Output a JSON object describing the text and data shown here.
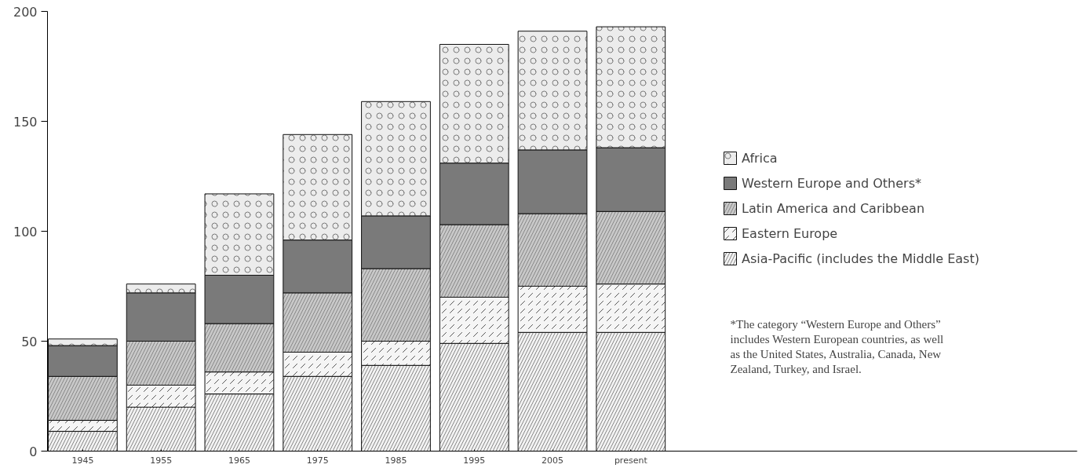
{
  "chart_data": {
    "type": "bar",
    "stacked": true,
    "categories": [
      "1945",
      "1955",
      "1965",
      "1975",
      "1985",
      "1995",
      "2005",
      "present"
    ],
    "series": [
      {
        "name": "Asia-Pacific (includes the Middle East)",
        "color": "#f2f2f2",
        "values": [
          9,
          20,
          26,
          34,
          39,
          49,
          54,
          54
        ]
      },
      {
        "name": "Eastern Europe",
        "color": "#f5f5f5",
        "values": [
          5,
          10,
          10,
          11,
          11,
          21,
          21,
          22
        ]
      },
      {
        "name": "Latin America and Caribbean",
        "color": "#c8c8c8",
        "values": [
          20,
          20,
          22,
          27,
          33,
          33,
          33,
          33
        ]
      },
      {
        "name": "Western Europe and Others*",
        "color": "#7a7a7a",
        "values": [
          14,
          22,
          22,
          24,
          24,
          28,
          29,
          29
        ]
      },
      {
        "name": "Africa",
        "color": "#ececec",
        "values": [
          3,
          4,
          37,
          48,
          52,
          54,
          54,
          55
        ]
      }
    ],
    "ylim": [
      0,
      200
    ],
    "yticks": [
      0,
      50,
      100,
      150,
      200
    ],
    "grid": false,
    "legend": "right",
    "annotations": [
      "*The category “Western Europe and Others” includes Western European countries, as well as the United States, Australia, Canada, New Zealand, Turkey, and Israel."
    ]
  }
}
